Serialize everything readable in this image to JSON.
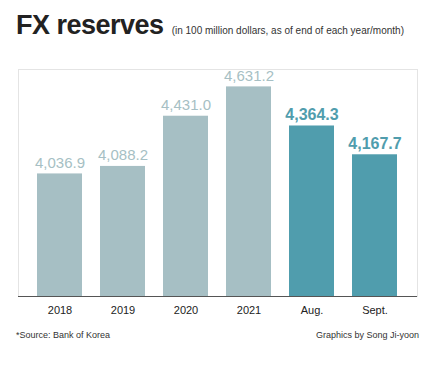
{
  "chart_data": {
    "type": "bar",
    "title": "FX reserves",
    "subtitle": "(in 100 million dollars, as of end of each year/month)",
    "categories": [
      "2018",
      "2019",
      "2020",
      "2021",
      "Aug.",
      "Sept."
    ],
    "values": [
      4036.9,
      4088.2,
      4431.0,
      4631.2,
      4364.3,
      4167.7
    ],
    "value_labels": [
      "4,036.9",
      "4,088.2",
      "4,431.0",
      "4,631.2",
      "4,364.3",
      "4,167.7"
    ],
    "colors": [
      "#a6bfc4",
      "#a6bfc4",
      "#a6bfc4",
      "#a6bfc4",
      "#509dad",
      "#509dad"
    ],
    "ylim": [
      3200,
      4750
    ],
    "yticks": [],
    "tick_labels": "x",
    "data_labels": true,
    "grid": false,
    "source": "*Source: Bank of Korea",
    "credit": "Graphics by Song Ji-yoon"
  }
}
